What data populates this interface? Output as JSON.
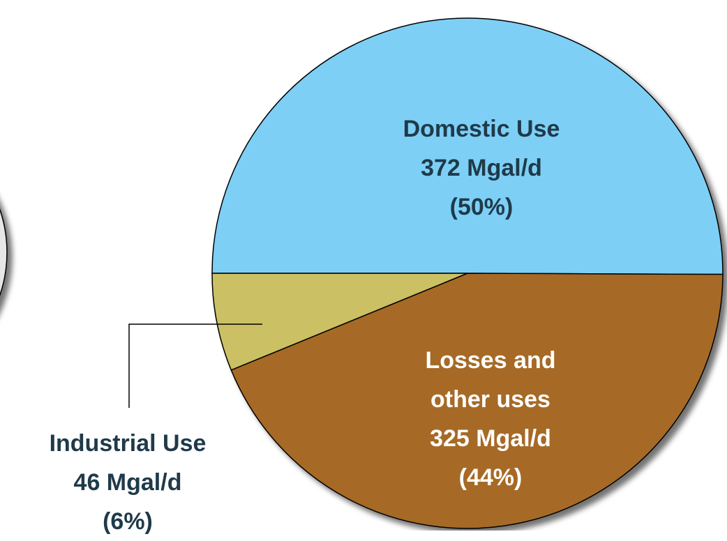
{
  "chart_data": {
    "type": "pie",
    "categories": [
      "Domestic Use",
      "Losses and other uses",
      "Industrial Use"
    ],
    "values": [
      372,
      325,
      46
    ],
    "value_labels": [
      "372 Mgal/d",
      "325 Mgal/d",
      "46 Mgal/d"
    ],
    "percents": [
      50,
      44,
      6
    ],
    "percent_labels": [
      "(50%)",
      "(44%)",
      "(6%)"
    ],
    "colors": [
      "#7dcff5",
      "#a66a28",
      "#cbc063"
    ]
  }
}
